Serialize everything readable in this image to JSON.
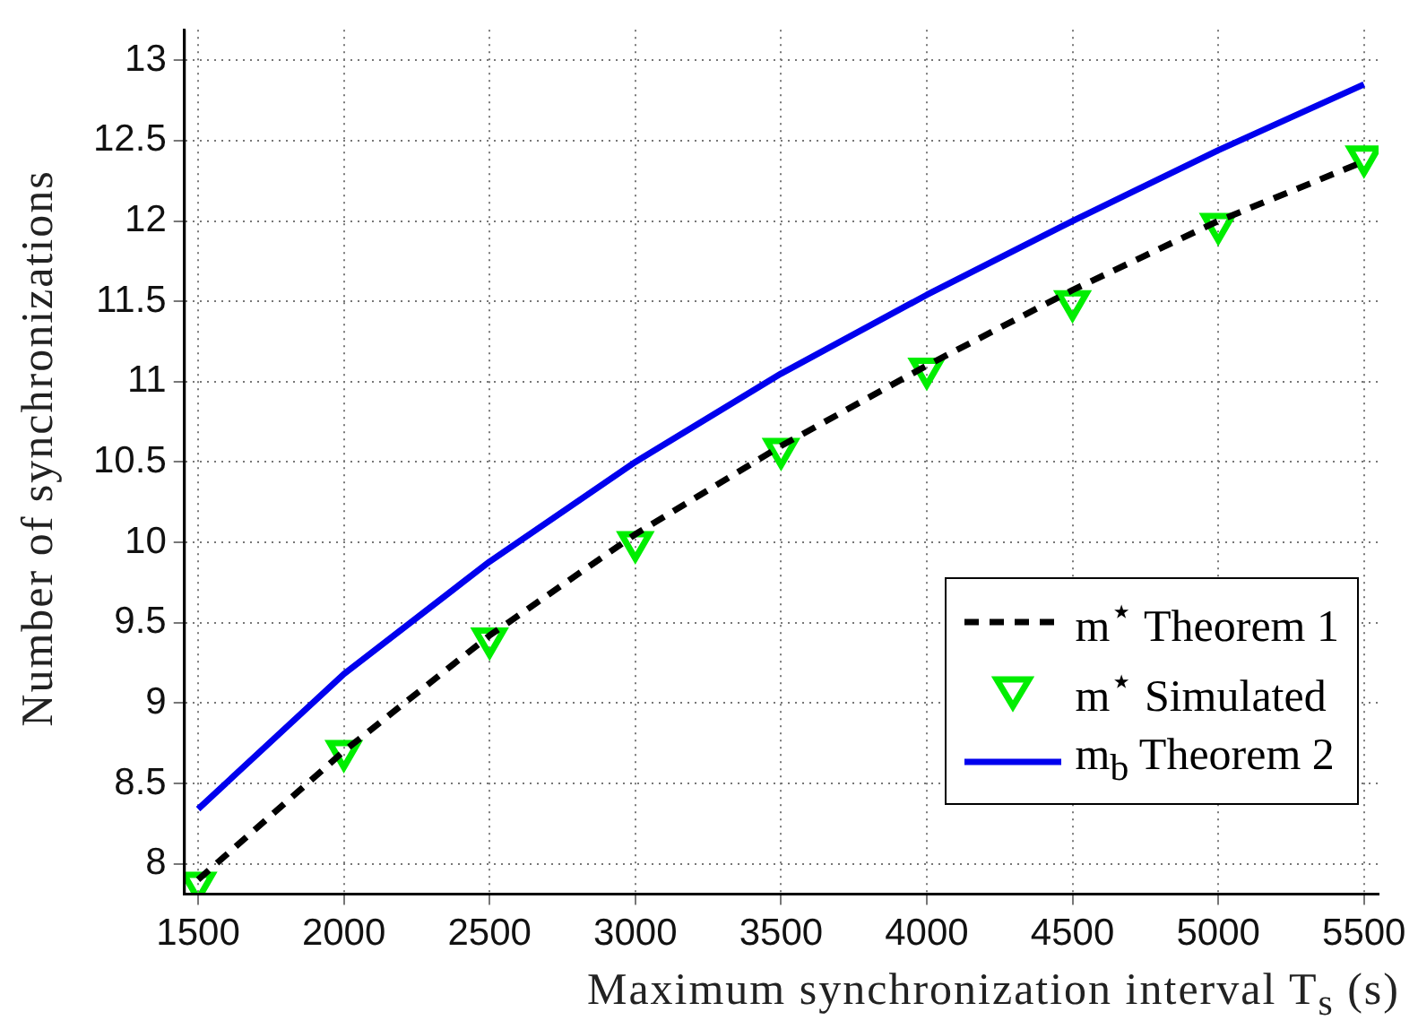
{
  "chart_data": {
    "type": "line",
    "xlabel": "Maximum synchronization interval T$_{s}$ (s)",
    "ylabel": "Number of synchronizations",
    "x": [
      1500,
      2000,
      2500,
      3000,
      3500,
      4000,
      4500,
      5000,
      5500
    ],
    "series": [
      {
        "name": "m$^{⋆}$ Theorem 1",
        "color": "#000000",
        "line_style": "dashed",
        "marker": "none",
        "values": [
          7.9,
          8.7,
          9.42,
          10.05,
          10.6,
          11.1,
          11.57,
          12.0,
          12.37
        ]
      },
      {
        "name": "m$^{⋆}$ Simulated",
        "type": "scatter",
        "color": "#00ee00",
        "marker": "triangle",
        "values": [
          7.88,
          8.7,
          9.4,
          10.0,
          10.58,
          11.08,
          11.5,
          11.98,
          12.4
        ]
      },
      {
        "name": "m$_{b}$ Theorem 2",
        "color": "#0000ee",
        "line_style": "solid",
        "marker": "none",
        "values": [
          8.34,
          9.18,
          9.88,
          10.5,
          11.05,
          11.54,
          12.0,
          12.44,
          12.85
        ]
      }
    ],
    "xlim": [
      1453,
      5550
    ],
    "ylim": [
      7.81,
      13.19
    ],
    "xticks": [
      1500,
      2000,
      2500,
      3000,
      3500,
      4000,
      4500,
      5000,
      5500
    ],
    "yticks": [
      8,
      8.5,
      9,
      9.5,
      10,
      10.5,
      11,
      11.5,
      12,
      12.5,
      13
    ],
    "grid": true,
    "legend": "bottom right"
  }
}
